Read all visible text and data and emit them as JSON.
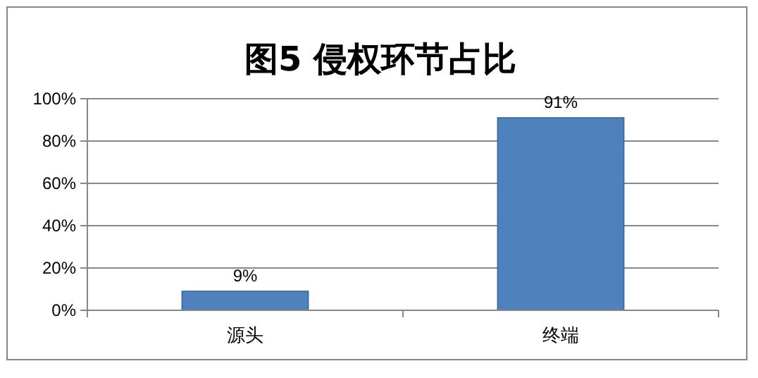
{
  "chart_data": {
    "type": "bar",
    "title": "图5  侵权环节占比",
    "categories": [
      "源头",
      "终端"
    ],
    "values": [
      9,
      91
    ],
    "color": "#4f81bd",
    "value_labels": [
      "9%",
      "91%"
    ],
    "ylim": [
      0,
      100
    ],
    "yticks": [
      {
        "value": 0,
        "label": "0%"
      },
      {
        "value": 20,
        "label": "20%"
      },
      {
        "value": 40,
        "label": "40%"
      },
      {
        "value": 60,
        "label": "60%"
      },
      {
        "value": 80,
        "label": "80%"
      },
      {
        "value": 100,
        "label": "100%"
      }
    ],
    "grid": "y"
  }
}
